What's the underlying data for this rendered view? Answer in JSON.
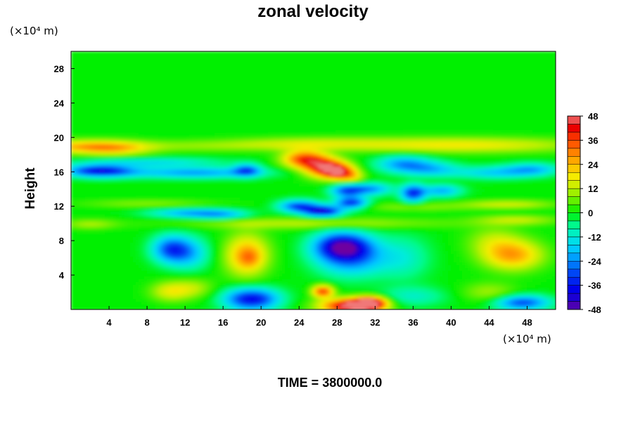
{
  "chart_data": {
    "type": "heatmap",
    "title": "zonal velocity",
    "ylabel": "Height",
    "xlabel": "",
    "x_unit": "(×10⁴ m)",
    "y_unit": "(×10⁴ m)",
    "xlim": [
      0,
      51
    ],
    "ylim": [
      0,
      30
    ],
    "x_ticks": [
      4,
      8,
      12,
      16,
      20,
      24,
      28,
      32,
      36,
      40,
      44,
      48
    ],
    "y_ticks": [
      4,
      8,
      12,
      16,
      20,
      24,
      28
    ],
    "colorbar": {
      "min": -48,
      "max": 48,
      "step": 4,
      "tick_labels": [
        48,
        36,
        24,
        12,
        0,
        -12,
        -24,
        -36,
        -48
      ]
    },
    "features": [
      {
        "x": 1.5,
        "y": 18.9,
        "sx": 3.5,
        "sy": 0.55,
        "value": 22
      },
      {
        "x": 5,
        "y": 18.6,
        "sx": 2.5,
        "sy": 0.6,
        "value": 12
      },
      {
        "x": 41,
        "y": 19.1,
        "sx": 9,
        "sy": 0.6,
        "value": 18
      },
      {
        "x": 25,
        "y": 19.3,
        "sx": 6,
        "sy": 0.5,
        "value": 10
      },
      {
        "x": 13,
        "y": 19.0,
        "sx": 8,
        "sy": 0.45,
        "value": 8
      },
      {
        "x": 24.5,
        "y": 17.5,
        "sx": 1.6,
        "sy": 0.7,
        "value": 34
      },
      {
        "x": 26.7,
        "y": 16.5,
        "sx": 1.6,
        "sy": 0.8,
        "value": 38
      },
      {
        "x": 28.2,
        "y": 16.0,
        "sx": 1.2,
        "sy": 0.6,
        "value": 30
      },
      {
        "x": 29.5,
        "y": 15.4,
        "sx": 1.0,
        "sy": 0.5,
        "value": 14
      },
      {
        "x": 3,
        "y": 16.1,
        "sx": 2.5,
        "sy": 0.5,
        "value": -36
      },
      {
        "x": 13,
        "y": 15.9,
        "sx": 5,
        "sy": 0.45,
        "value": -22
      },
      {
        "x": 18.5,
        "y": 16.2,
        "sx": 1.0,
        "sy": 0.5,
        "value": -24
      },
      {
        "x": 8.5,
        "y": 17.1,
        "sx": 5,
        "sy": 0.4,
        "value": -14
      },
      {
        "x": 35,
        "y": 16.9,
        "sx": 2,
        "sy": 0.7,
        "value": -22
      },
      {
        "x": 38,
        "y": 16.3,
        "sx": 2,
        "sy": 0.6,
        "value": -16
      },
      {
        "x": 36,
        "y": 13.5,
        "sx": 0.9,
        "sy": 0.7,
        "value": -32
      },
      {
        "x": 39,
        "y": 13.8,
        "sx": 1.5,
        "sy": 0.5,
        "value": -20
      },
      {
        "x": 44.5,
        "y": 15.9,
        "sx": 3,
        "sy": 0.5,
        "value": -16
      },
      {
        "x": 48.5,
        "y": 16.3,
        "sx": 2,
        "sy": 0.5,
        "value": -18
      },
      {
        "x": 26.5,
        "y": 11.4,
        "sx": 1.4,
        "sy": 0.45,
        "value": -38
      },
      {
        "x": 24,
        "y": 12.0,
        "sx": 1.5,
        "sy": 0.5,
        "value": -30
      },
      {
        "x": 29.5,
        "y": 12.4,
        "sx": 1.2,
        "sy": 0.5,
        "value": -32
      },
      {
        "x": 29,
        "y": 13.8,
        "sx": 1.2,
        "sy": 0.5,
        "value": -26
      },
      {
        "x": 31.5,
        "y": 14.0,
        "sx": 1.6,
        "sy": 0.5,
        "value": -22
      },
      {
        "x": 12.5,
        "y": 11.2,
        "sx": 3,
        "sy": 0.4,
        "value": -20
      },
      {
        "x": 16,
        "y": 11.0,
        "sx": 2,
        "sy": 0.4,
        "value": -14
      },
      {
        "x": 46,
        "y": 12.2,
        "sx": 3.5,
        "sy": 0.35,
        "value": 14
      },
      {
        "x": 8,
        "y": 12.3,
        "sx": 5,
        "sy": 0.35,
        "value": 8
      },
      {
        "x": 36,
        "y": 11.9,
        "sx": 4,
        "sy": 0.35,
        "value": 8
      },
      {
        "x": 25.5,
        "y": 10.0,
        "sx": 10,
        "sy": 0.45,
        "value": 12
      },
      {
        "x": 2,
        "y": 9.9,
        "sx": 2,
        "sy": 0.4,
        "value": 10
      },
      {
        "x": 47,
        "y": 10.4,
        "sx": 3,
        "sy": 0.4,
        "value": 12
      },
      {
        "x": 10.5,
        "y": 7.0,
        "sx": 1.4,
        "sy": 1.1,
        "value": -28
      },
      {
        "x": 12.5,
        "y": 6.5,
        "sx": 1.5,
        "sy": 1.3,
        "value": -16
      },
      {
        "x": 18.5,
        "y": 6.3,
        "sx": 1.6,
        "sy": 1.7,
        "value": 26
      },
      {
        "x": 18.8,
        "y": 6.0,
        "sx": 0.8,
        "sy": 0.7,
        "value": 8
      },
      {
        "x": 28.5,
        "y": 7.4,
        "sx": 2.0,
        "sy": 1.1,
        "value": -38
      },
      {
        "x": 29.5,
        "y": 6.0,
        "sx": 2.5,
        "sy": 1.5,
        "value": -24
      },
      {
        "x": 35,
        "y": 6.0,
        "sx": 2,
        "sy": 1.8,
        "value": -10
      },
      {
        "x": 46.5,
        "y": 6.3,
        "sx": 2.2,
        "sy": 1.2,
        "value": 26
      },
      {
        "x": 44.5,
        "y": 8.0,
        "sx": 2,
        "sy": 1.2,
        "value": 10
      },
      {
        "x": 19,
        "y": 1.2,
        "sx": 2,
        "sy": 0.9,
        "value": -38
      },
      {
        "x": 29.5,
        "y": 0.4,
        "sx": 2.2,
        "sy": 0.6,
        "value": 50
      },
      {
        "x": 31.5,
        "y": 0.8,
        "sx": 1.2,
        "sy": 0.5,
        "value": 40
      },
      {
        "x": 26.5,
        "y": 2.1,
        "sx": 0.8,
        "sy": 0.5,
        "value": 36
      },
      {
        "x": 10.5,
        "y": 2.1,
        "sx": 1.5,
        "sy": 0.8,
        "value": 16
      },
      {
        "x": 13,
        "y": 2.5,
        "sx": 1.5,
        "sy": 0.8,
        "value": 10
      },
      {
        "x": 47.5,
        "y": 0.8,
        "sx": 2,
        "sy": 0.6,
        "value": -30
      },
      {
        "x": 44,
        "y": 2.0,
        "sx": 2,
        "sy": 0.8,
        "value": 10
      },
      {
        "x": 36,
        "y": 1.5,
        "sx": 2.5,
        "sy": 0.8,
        "value": -10
      }
    ]
  },
  "time_label": "TIME = 3800000.0"
}
